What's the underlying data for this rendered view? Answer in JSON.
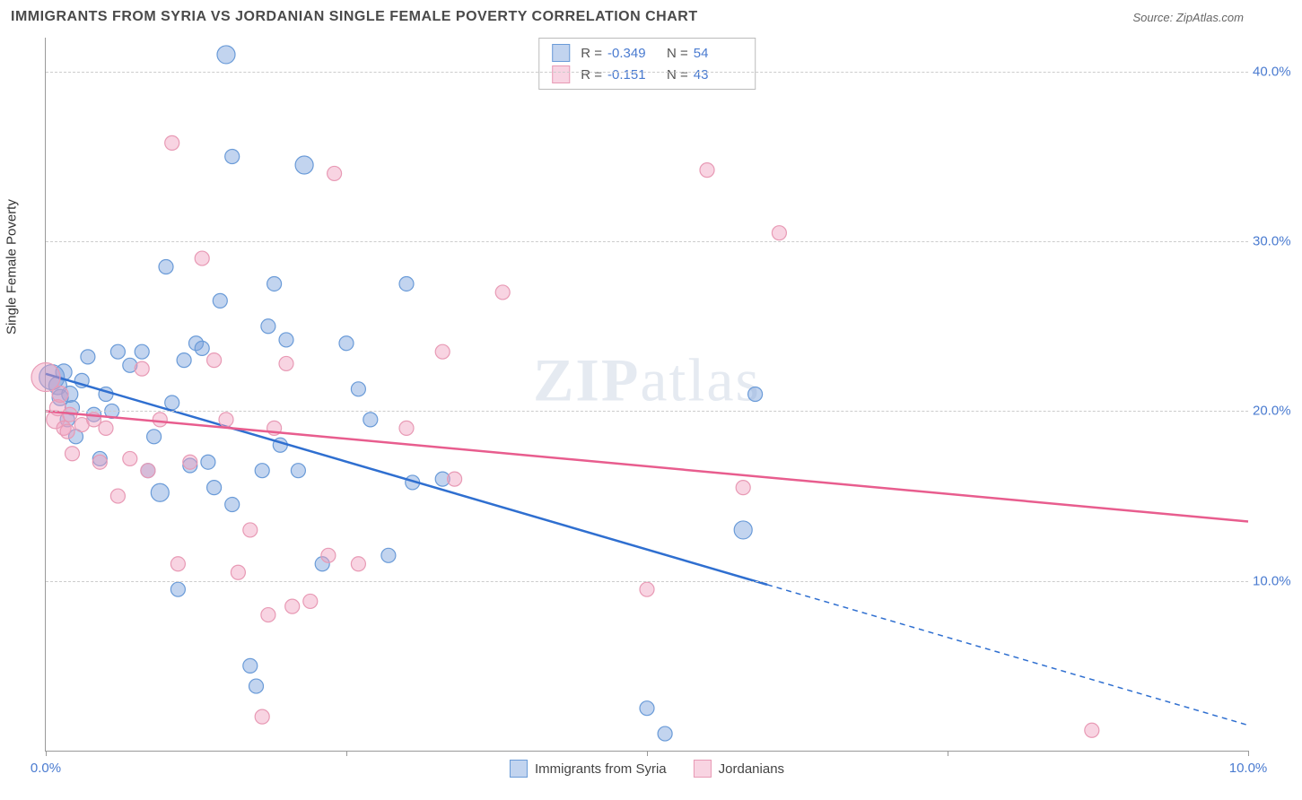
{
  "header": {
    "title": "IMMIGRANTS FROM SYRIA VS JORDANIAN SINGLE FEMALE POVERTY CORRELATION CHART",
    "source_prefix": "Source: ",
    "source_name": "ZipAtlas.com"
  },
  "watermark": {
    "zip": "ZIP",
    "atlas": "atlas"
  },
  "chart": {
    "type": "scatter",
    "y_axis_label": "Single Female Poverty",
    "xlim": [
      0,
      10
    ],
    "ylim": [
      0,
      42
    ],
    "y_ticks": [
      10,
      20,
      30,
      40
    ],
    "y_tick_labels": [
      "10.0%",
      "20.0%",
      "30.0%",
      "40.0%"
    ],
    "x_ticks": [
      0,
      2.5,
      5,
      7.5,
      10
    ],
    "x_tick_labels": [
      "0.0%",
      "",
      "",
      "",
      "10.0%"
    ],
    "grid_color": "#cccccc",
    "axis_color": "#999999",
    "tick_label_color": "#4a7bd0",
    "series": [
      {
        "id": "syria",
        "label": "Immigrants from Syria",
        "fill": "rgba(120,160,220,0.45)",
        "stroke": "#6a9bd8",
        "line_color": "#2f6fd0",
        "line_width": 2.5,
        "R": "-0.349",
        "N": "54",
        "trend": {
          "x1": 0,
          "y1": 22.2,
          "x2": 10,
          "y2": 1.5,
          "solid_until_x": 6.0
        },
        "points": [
          [
            0.05,
            22.0,
            14
          ],
          [
            0.1,
            21.5,
            10
          ],
          [
            0.12,
            20.8,
            9
          ],
          [
            0.15,
            22.3,
            9
          ],
          [
            0.18,
            19.5,
            8
          ],
          [
            0.2,
            21.0,
            9
          ],
          [
            0.22,
            20.2,
            8
          ],
          [
            0.25,
            18.5,
            8
          ],
          [
            0.3,
            21.8,
            8
          ],
          [
            0.35,
            23.2,
            8
          ],
          [
            0.4,
            19.8,
            8
          ],
          [
            0.45,
            17.2,
            8
          ],
          [
            0.5,
            21.0,
            8
          ],
          [
            0.55,
            20.0,
            8
          ],
          [
            0.6,
            23.5,
            8
          ],
          [
            0.7,
            22.7,
            8
          ],
          [
            0.8,
            23.5,
            8
          ],
          [
            0.85,
            16.5,
            8
          ],
          [
            0.9,
            18.5,
            8
          ],
          [
            0.95,
            15.2,
            10
          ],
          [
            1.0,
            28.5,
            8
          ],
          [
            1.05,
            20.5,
            8
          ],
          [
            1.1,
            9.5,
            8
          ],
          [
            1.15,
            23.0,
            8
          ],
          [
            1.2,
            16.8,
            8
          ],
          [
            1.25,
            24.0,
            8
          ],
          [
            1.3,
            23.7,
            8
          ],
          [
            1.35,
            17.0,
            8
          ],
          [
            1.4,
            15.5,
            8
          ],
          [
            1.45,
            26.5,
            8
          ],
          [
            1.5,
            41.0,
            10
          ],
          [
            1.55,
            14.5,
            8
          ],
          [
            1.55,
            35.0,
            8
          ],
          [
            1.7,
            5.0,
            8
          ],
          [
            1.75,
            3.8,
            8
          ],
          [
            1.8,
            16.5,
            8
          ],
          [
            1.85,
            25.0,
            8
          ],
          [
            1.9,
            27.5,
            8
          ],
          [
            1.95,
            18.0,
            8
          ],
          [
            2.0,
            24.2,
            8
          ],
          [
            2.1,
            16.5,
            8
          ],
          [
            2.15,
            34.5,
            10
          ],
          [
            2.3,
            11.0,
            8
          ],
          [
            2.5,
            24.0,
            8
          ],
          [
            2.6,
            21.3,
            8
          ],
          [
            2.7,
            19.5,
            8
          ],
          [
            2.85,
            11.5,
            8
          ],
          [
            3.0,
            27.5,
            8
          ],
          [
            3.05,
            15.8,
            8
          ],
          [
            3.3,
            16.0,
            8
          ],
          [
            5.0,
            2.5,
            8
          ],
          [
            5.15,
            1.0,
            8
          ],
          [
            5.8,
            13.0,
            10
          ],
          [
            5.9,
            21.0,
            8
          ]
        ]
      },
      {
        "id": "jordan",
        "label": "Jordanians",
        "fill": "rgba(240,160,190,0.45)",
        "stroke": "#e89ab5",
        "line_color": "#e85d8e",
        "line_width": 2.5,
        "R": "-0.151",
        "N": "43",
        "trend": {
          "x1": 0,
          "y1": 20.0,
          "x2": 10,
          "y2": 13.5,
          "solid_until_x": 10
        },
        "points": [
          [
            0.0,
            22.0,
            16
          ],
          [
            0.08,
            19.5,
            10
          ],
          [
            0.1,
            20.2,
            9
          ],
          [
            0.12,
            21.0,
            9
          ],
          [
            0.15,
            19.0,
            8
          ],
          [
            0.18,
            18.8,
            8
          ],
          [
            0.2,
            19.8,
            8
          ],
          [
            0.22,
            17.5,
            8
          ],
          [
            0.3,
            19.2,
            8
          ],
          [
            0.4,
            19.5,
            8
          ],
          [
            0.45,
            17.0,
            8
          ],
          [
            0.5,
            19.0,
            8
          ],
          [
            0.6,
            15.0,
            8
          ],
          [
            0.7,
            17.2,
            8
          ],
          [
            0.8,
            22.5,
            8
          ],
          [
            0.85,
            16.5,
            8
          ],
          [
            0.95,
            19.5,
            8
          ],
          [
            1.05,
            35.8,
            8
          ],
          [
            1.1,
            11.0,
            8
          ],
          [
            1.2,
            17.0,
            8
          ],
          [
            1.3,
            29.0,
            8
          ],
          [
            1.4,
            23.0,
            8
          ],
          [
            1.5,
            19.5,
            8
          ],
          [
            1.6,
            10.5,
            8
          ],
          [
            1.7,
            13.0,
            8
          ],
          [
            1.8,
            2.0,
            8
          ],
          [
            1.85,
            8.0,
            8
          ],
          [
            1.9,
            19.0,
            8
          ],
          [
            2.0,
            22.8,
            8
          ],
          [
            2.05,
            8.5,
            8
          ],
          [
            2.2,
            8.8,
            8
          ],
          [
            2.35,
            11.5,
            8
          ],
          [
            2.4,
            34.0,
            8
          ],
          [
            2.6,
            11.0,
            8
          ],
          [
            3.0,
            19.0,
            8
          ],
          [
            3.3,
            23.5,
            8
          ],
          [
            3.4,
            16.0,
            8
          ],
          [
            3.8,
            27.0,
            8
          ],
          [
            5.0,
            9.5,
            8
          ],
          [
            5.5,
            34.2,
            8
          ],
          [
            5.8,
            15.5,
            8
          ],
          [
            6.1,
            30.5,
            8
          ],
          [
            8.7,
            1.2,
            8
          ]
        ]
      }
    ]
  },
  "legend_top": {
    "r_label": "R =",
    "n_label": "N ="
  }
}
